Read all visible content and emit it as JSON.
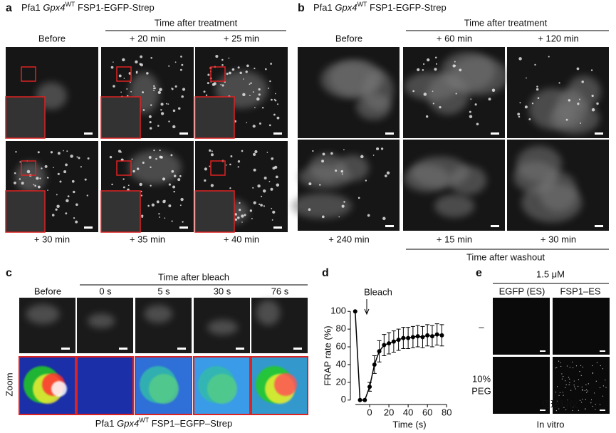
{
  "figure": {
    "title": {
      "pre": "Pfa1 ",
      "gene": "Gpx4",
      "sup": "WT",
      "post": " FSP1-EGFP-Strep"
    },
    "caption_c": {
      "pre": "Pfa1 ",
      "gene": "Gpx4",
      "sup": "WT",
      "post": " FSP1–EGFP–Strep"
    },
    "a": {
      "label": "a",
      "header": "Time after treatment",
      "tiles": [
        "Before",
        "+ 20 min",
        "+ 25 min",
        "+ 30 min",
        "+ 35 min",
        "+ 40 min"
      ]
    },
    "b": {
      "label": "b",
      "header": "Time after treatment",
      "footer": "Time after washout",
      "tiles": [
        "Before",
        "+ 60 min",
        "+ 120 min",
        "+ 240 min",
        "+ 15 min",
        "+ 30 min"
      ]
    },
    "c": {
      "label": "c",
      "header": "Time after bleach",
      "tiles": [
        "Before",
        "0 s",
        "5 s",
        "30 s",
        "76 s"
      ],
      "zoom": "Zoom"
    },
    "e": {
      "label": "e",
      "conc": "1.5 μM",
      "cols": [
        "EGFP (ES)",
        "FSP1–ES"
      ],
      "rows": [
        "–",
        "10%",
        "PEG"
      ],
      "footer": "In vitro",
      "watermark": "佰珐科仪"
    }
  },
  "chart_data": {
    "type": "line",
    "label": "d",
    "color": "#000000",
    "x": [
      -15,
      -10,
      -5,
      0,
      5,
      10,
      15,
      20,
      25,
      30,
      35,
      40,
      45,
      50,
      55,
      60,
      65,
      70,
      75
    ],
    "values": [
      100,
      0,
      0,
      15,
      40,
      55,
      62,
      64,
      66,
      68,
      70,
      70,
      71,
      72,
      71,
      73,
      72,
      74,
      73
    ],
    "errors": [
      0,
      0,
      0,
      5,
      10,
      12,
      12,
      12,
      12,
      12,
      12,
      12,
      12,
      12,
      12,
      12,
      12,
      12,
      12
    ],
    "xlim": [
      -20,
      85
    ],
    "ylim": [
      -5,
      105
    ],
    "xticks": [
      0,
      20,
      40,
      60,
      80
    ],
    "yticks": [
      0,
      20,
      40,
      60,
      80,
      100
    ],
    "xlabel": "Time (s)",
    "ylabel": "FRAP rate (%)",
    "annotations": [
      {
        "text": "Bleach",
        "x": -3
      }
    ]
  }
}
